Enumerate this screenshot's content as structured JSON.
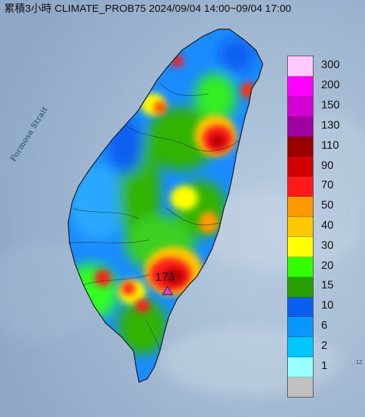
{
  "title": "累積3小時 CLIMATE_PROB75 2024/09/04 14:00~09/04 17:00",
  "map": {
    "sea_label": "Formosa Strait",
    "edge_mark": "12"
  },
  "peak": {
    "value_label": "173",
    "marker_color": "#e040e0",
    "marker_icon": "triangle-marker-icon"
  },
  "legend": {
    "items": [
      {
        "label": "300",
        "color": "#ffc8ff"
      },
      {
        "label": "200",
        "color": "#ff00ff"
      },
      {
        "label": "150",
        "color": "#d300d3"
      },
      {
        "label": "130",
        "color": "#a000a0"
      },
      {
        "label": "110",
        "color": "#9a0000"
      },
      {
        "label": "90",
        "color": "#d30000"
      },
      {
        "label": "70",
        "color": "#ff1a1a"
      },
      {
        "label": "50",
        "color": "#ff9900"
      },
      {
        "label": "40",
        "color": "#ffc800"
      },
      {
        "label": "30",
        "color": "#ffff00"
      },
      {
        "label": "20",
        "color": "#33ff00"
      },
      {
        "label": "15",
        "color": "#2aa000"
      },
      {
        "label": "10",
        "color": "#0a5ff0"
      },
      {
        "label": "6",
        "color": "#0a96ff"
      },
      {
        "label": "2",
        "color": "#00c8ff"
      },
      {
        "label": "1",
        "color": "#99ffff"
      },
      {
        "label": "",
        "color": "#c0c0c0"
      }
    ]
  }
}
